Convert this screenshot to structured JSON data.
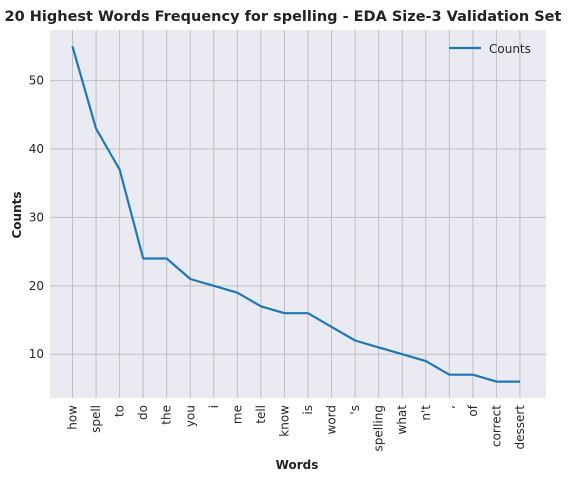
{
  "chart_data": {
    "type": "line",
    "title": "20 Highest Words Frequency for spelling - EDA Size-3 Validation Set",
    "xlabel": "Words",
    "ylabel": "Counts",
    "categories": [
      "how",
      "spell",
      "to",
      "do",
      "the",
      "you",
      "i",
      "me",
      "tell",
      "know",
      "is",
      "word",
      "'s",
      "spelling",
      "what",
      "n't",
      ",",
      "of",
      "correct",
      "dessert"
    ],
    "series": [
      {
        "name": "Counts",
        "values": [
          55,
          43,
          37,
          24,
          24,
          21,
          20,
          19,
          17,
          16,
          16,
          14,
          12,
          11,
          10,
          9,
          7,
          7,
          6,
          6
        ],
        "color": "#1f77b4"
      }
    ],
    "ylim": [
      3.6,
      57.4
    ],
    "yticks": [
      10,
      20,
      30,
      40,
      50
    ],
    "grid": true,
    "legend_position": "top-right",
    "colors": {
      "plot_background": "#eaeaf2",
      "grid": "#c0c0c0"
    }
  }
}
